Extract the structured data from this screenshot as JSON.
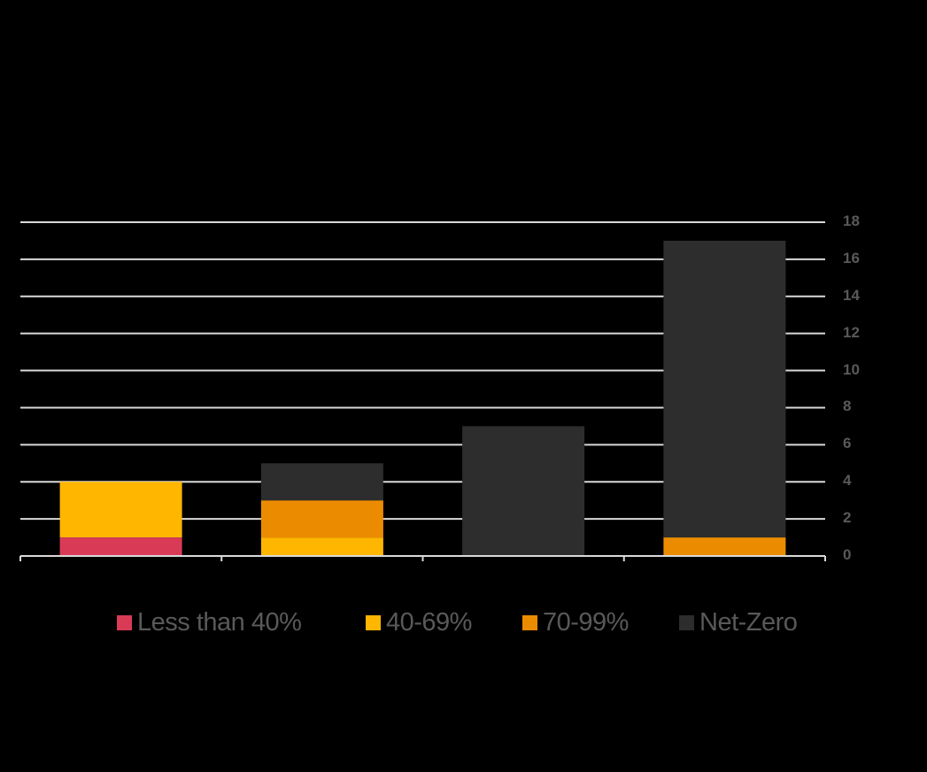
{
  "chart_data": {
    "type": "bar",
    "stacked": true,
    "title": "",
    "xlabel": "",
    "ylabel": "",
    "categories": [
      "",
      "",
      "",
      ""
    ],
    "series": [
      {
        "name": "Less than 40%",
        "color": "#D93B56",
        "values": [
          1,
          0,
          0,
          0
        ]
      },
      {
        "name": "40-69%",
        "color": "#FFB600",
        "values": [
          3,
          1,
          0,
          0
        ]
      },
      {
        "name": "70-99%",
        "color": "#EB8C00",
        "values": [
          0,
          2,
          0,
          1
        ]
      },
      {
        "name": "Net-Zero",
        "color": "#2D2D2D",
        "values": [
          0,
          2,
          7,
          16
        ]
      }
    ],
    "totals": [
      4,
      5,
      7,
      17
    ],
    "ylim": [
      0,
      18
    ],
    "yticks": [
      0,
      2,
      4,
      6,
      8,
      10,
      12,
      14,
      16,
      18
    ],
    "y_axis_position": "right",
    "grid": true,
    "legend_position": "bottom"
  },
  "colors": {
    "background": "#000000",
    "gridline": "#D9D9D9",
    "tick_text": "#595959"
  },
  "legend": {
    "items": [
      {
        "label": "Less than 40%",
        "color": "#D93B56"
      },
      {
        "label": "40-69%",
        "color": "#FFB600"
      },
      {
        "label": "70-99%",
        "color": "#EB8C00"
      },
      {
        "label": "Net-Zero",
        "color": "#2D2D2D"
      }
    ]
  }
}
